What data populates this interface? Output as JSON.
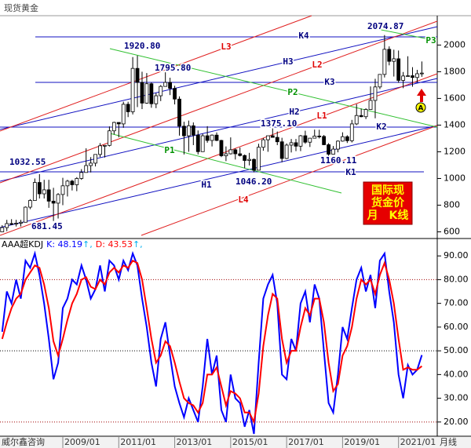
{
  "header": {
    "title": "现货黄金"
  },
  "footer": {
    "source": "威尔鑫咨询"
  },
  "chart_data": [
    {
      "type": "candlestick",
      "x": [
        "2006/11",
        "2007/01",
        "2007/03",
        "2007/05",
        "2007/07",
        "2007/09",
        "2007/11",
        "2008/01",
        "2008/03",
        "2008/05",
        "2008/07",
        "2008/09",
        "2008/11",
        "2009/01",
        "2009/03",
        "2009/05",
        "2009/07",
        "2009/09",
        "2009/11",
        "2010/01",
        "2010/03",
        "2010/05",
        "2010/07",
        "2010/09",
        "2010/11",
        "2011/01",
        "2011/03",
        "2011/05",
        "2011/07",
        "2011/09",
        "2011/11",
        "2012/01",
        "2012/03",
        "2012/05",
        "2012/07",
        "2012/09",
        "2012/11",
        "2013/01",
        "2013/03",
        "2013/05",
        "2013/07",
        "2013/09",
        "2013/11",
        "2014/01",
        "2014/03",
        "2014/05",
        "2014/07",
        "2014/09",
        "2014/11",
        "2015/01",
        "2015/03",
        "2015/05",
        "2015/07",
        "2015/09",
        "2015/11",
        "2016/01",
        "2016/03",
        "2016/05",
        "2016/07",
        "2016/09",
        "2016/11",
        "2017/01",
        "2017/03",
        "2017/05",
        "2017/07",
        "2017/09",
        "2017/11",
        "2018/01",
        "2018/03",
        "2018/05",
        "2018/07",
        "2018/09",
        "2018/11",
        "2019/01",
        "2019/03",
        "2019/05",
        "2019/07",
        "2019/09",
        "2019/11",
        "2020/01",
        "2020/03",
        "2020/05",
        "2020/07",
        "2020/09",
        "2020/11",
        "2021/01",
        "2021/03",
        "2021/05",
        "2021/07",
        "2021/09",
        "2021/11"
      ],
      "ohlc": [
        [
          600,
          650,
          600,
          632
        ],
        [
          632,
          690,
          605,
          662
        ],
        [
          662,
          695,
          650,
          660
        ],
        [
          660,
          690,
          640,
          665
        ],
        [
          665,
          690,
          640,
          672
        ],
        [
          672,
          790,
          670,
          785
        ],
        [
          785,
          845,
          770,
          835
        ],
        [
          835,
          1000,
          835,
          970
        ],
        [
          970,
          1032.55,
          850,
          885
        ],
        [
          885,
          990,
          850,
          915
        ],
        [
          915,
          990,
          780,
          830
        ],
        [
          830,
          930,
          681.45,
          815
        ],
        [
          815,
          890,
          700,
          880
        ],
        [
          880,
          1005,
          800,
          945
        ],
        [
          945,
          990,
          865,
          980
        ],
        [
          980,
          990,
          910,
          953
        ],
        [
          953,
          1010,
          905,
          1000
        ],
        [
          1000,
          1070,
          990,
          1045
        ],
        [
          1045,
          1226,
          1045,
          1097
        ],
        [
          1097,
          1160,
          1045,
          1115
        ],
        [
          1115,
          1180,
          1090,
          1180
        ],
        [
          1180,
          1265,
          1160,
          1245
        ],
        [
          1245,
          1250,
          1157,
          1248
        ],
        [
          1248,
          1390,
          1240,
          1357
        ],
        [
          1357,
          1425,
          1330,
          1420
        ],
        [
          1420,
          1420,
          1308,
          1409
        ],
        [
          1409,
          1575,
          1380,
          1556
        ],
        [
          1556,
          1575,
          1460,
          1500
        ],
        [
          1500,
          1910,
          1480,
          1825
        ],
        [
          1825,
          1920.8,
          1535,
          1720
        ],
        [
          1720,
          1800,
          1520,
          1565
        ],
        [
          1565,
          1790,
          1560,
          1710
        ],
        [
          1710,
          1720,
          1530,
          1560
        ],
        [
          1560,
          1640,
          1527,
          1620
        ],
        [
          1620,
          1700,
          1580,
          1690
        ],
        [
          1690,
          1795.8,
          1690,
          1720
        ],
        [
          1720,
          1755,
          1625,
          1675
        ],
        [
          1675,
          1695,
          1555,
          1595
        ],
        [
          1595,
          1615,
          1321,
          1392
        ],
        [
          1392,
          1425,
          1180,
          1320
        ],
        [
          1320,
          1434,
          1200,
          1395
        ],
        [
          1395,
          1420,
          1250,
          1325
        ],
        [
          1325,
          1360,
          1180,
          1201
        ],
        [
          1201,
          1335,
          1202,
          1320
        ],
        [
          1320,
          1392,
          1268,
          1285
        ],
        [
          1285,
          1330,
          1240,
          1325
        ],
        [
          1325,
          1345,
          1280,
          1285
        ],
        [
          1285,
          1290,
          1160,
          1170
        ],
        [
          1170,
          1240,
          1130,
          1185
        ],
        [
          1185,
          1308,
          1180,
          1215
        ],
        [
          1215,
          1225,
          1142,
          1185
        ],
        [
          1185,
          1232,
          1165,
          1172
        ],
        [
          1172,
          1180,
          1077,
          1135
        ],
        [
          1135,
          1192,
          1098,
          1143
        ],
        [
          1143,
          1150,
          1046.2,
          1062
        ],
        [
          1062,
          1260,
          1062,
          1234
        ],
        [
          1234,
          1303,
          1208,
          1290
        ],
        [
          1290,
          1320,
          1200,
          1320
        ],
        [
          1320,
          1375.1,
          1310,
          1308
        ],
        [
          1308,
          1352,
          1250,
          1275
        ],
        [
          1275,
          1305,
          1122,
          1150
        ],
        [
          1150,
          1263,
          1145,
          1250
        ],
        [
          1250,
          1296,
          1195,
          1268
        ],
        [
          1268,
          1296,
          1205,
          1242
        ],
        [
          1242,
          1326,
          1205,
          1320
        ],
        [
          1320,
          1358,
          1260,
          1272
        ],
        [
          1272,
          1300,
          1236,
          1302
        ],
        [
          1302,
          1366,
          1300,
          1318
        ],
        [
          1318,
          1365,
          1300,
          1315
        ],
        [
          1315,
          1326,
          1250,
          1253
        ],
        [
          1253,
          1265,
          1160.11,
          1182
        ],
        [
          1182,
          1243,
          1180,
          1220
        ],
        [
          1220,
          1285,
          1196,
          1280
        ],
        [
          1280,
          1346,
          1276,
          1313
        ],
        [
          1313,
          1324,
          1266,
          1283
        ],
        [
          1283,
          1439,
          1270,
          1409
        ],
        [
          1409,
          1557,
          1400,
          1472
        ],
        [
          1472,
          1524,
          1459,
          1463
        ],
        [
          1463,
          1526,
          1445,
          1517
        ],
        [
          1517,
          1690,
          1517,
          1585
        ],
        [
          1585,
          1747,
          1451,
          1686
        ],
        [
          1686,
          1765,
          1670,
          1780
        ],
        [
          1780,
          2074.87,
          1757,
          1968
        ],
        [
          1968,
          1990,
          1848,
          1878
        ],
        [
          1878,
          1965,
          1764,
          1897
        ],
        [
          1897,
          1959,
          1717,
          1735
        ],
        [
          1735,
          1798,
          1677,
          1768
        ],
        [
          1768,
          1916,
          1765,
          1770
        ],
        [
          1770,
          1834,
          1688,
          1757
        ],
        [
          1757,
          1814,
          1721,
          1785
        ],
        [
          1785,
          1877,
          1762,
          1790
        ]
      ],
      "up_color": "#ffffff",
      "down_color": "#000000",
      "edge_color": "#000000",
      "ylim": [
        550,
        2220
      ],
      "yticks": [
        600,
        800,
        1000,
        1200,
        1400,
        1600,
        1800,
        2000
      ],
      "price_labels": [
        "2074.87",
        "1920.80",
        "1795.80",
        "1375.10",
        "1160.11",
        "1032.55",
        "1046.20",
        "681.45"
      ],
      "line_labels": [
        "K4",
        "P3",
        "L3",
        "H3",
        "L2",
        "K3",
        "P2",
        "H2",
        "L1",
        "K2",
        "P1",
        "K1",
        "H1",
        "L4"
      ],
      "badge": {
        "lines": [
          "国际现",
          "货金价",
          "月　K线"
        ],
        "color": "#e60000",
        "text_color": "#ffff00"
      },
      "marker": "A"
    },
    {
      "type": "line",
      "title": "AAA超KDJ",
      "series": [
        {
          "name": "K",
          "label": "K: 48.19",
          "suffix": "↑,",
          "color": "#0000ff",
          "values": [
            58,
            75,
            70,
            80,
            72,
            88,
            85,
            91,
            82,
            70,
            55,
            38,
            45,
            68,
            72,
            80,
            78,
            86,
            80,
            72,
            76,
            86,
            75,
            88,
            86,
            80,
            88,
            84,
            91,
            86,
            72,
            60,
            45,
            35,
            55,
            62,
            48,
            35,
            28,
            22,
            30,
            25,
            20,
            35,
            55,
            40,
            48,
            25,
            20,
            40,
            30,
            28,
            18,
            25,
            15,
            45,
            72,
            78,
            82,
            70,
            40,
            38,
            55,
            50,
            70,
            75,
            62,
            78,
            72,
            50,
            28,
            24,
            40,
            60,
            55,
            68,
            80,
            85,
            75,
            82,
            68,
            88,
            91,
            75,
            62,
            40,
            30,
            44,
            40,
            42,
            48.19
          ]
        },
        {
          "name": "D",
          "label": "D: 43.53",
          "suffix": "↑,",
          "color": "#ff0000",
          "values": [
            55,
            62,
            68,
            72,
            74,
            80,
            83,
            86,
            85,
            78,
            68,
            54,
            48,
            55,
            63,
            70,
            74,
            80,
            81,
            77,
            76,
            80,
            78,
            83,
            85,
            83,
            86,
            85,
            88,
            87,
            80,
            68,
            55,
            45,
            48,
            54,
            52,
            45,
            37,
            30,
            28,
            27,
            24,
            28,
            40,
            40,
            43,
            35,
            27,
            33,
            32,
            30,
            24,
            24,
            20,
            32,
            52,
            65,
            74,
            72,
            55,
            45,
            50,
            50,
            60,
            68,
            65,
            72,
            72,
            62,
            45,
            33,
            36,
            48,
            52,
            60,
            72,
            80,
            78,
            80,
            74,
            82,
            87,
            80,
            70,
            55,
            42,
            43,
            42,
            42,
            43.53
          ]
        }
      ],
      "ylim": [
        14,
        97
      ],
      "yticks": [
        {
          "value": 20,
          "label": "20.00"
        },
        {
          "value": 30,
          "label": "30.00"
        },
        {
          "value": 40,
          "label": "40.00"
        },
        {
          "value": 50,
          "label": "50.00"
        },
        {
          "value": 60,
          "label": "60.00"
        },
        {
          "value": 70,
          "label": "70.00"
        },
        {
          "value": 80,
          "label": "80.00"
        },
        {
          "value": 90,
          "label": "90.00"
        }
      ],
      "ref_lines": [
        80,
        50,
        20
      ],
      "xticks": [
        "2009/01",
        "2011/01",
        "2013/01",
        "2015/01",
        "2017/01",
        "2019/01",
        "2021/01"
      ],
      "period_label": "月线"
    }
  ]
}
